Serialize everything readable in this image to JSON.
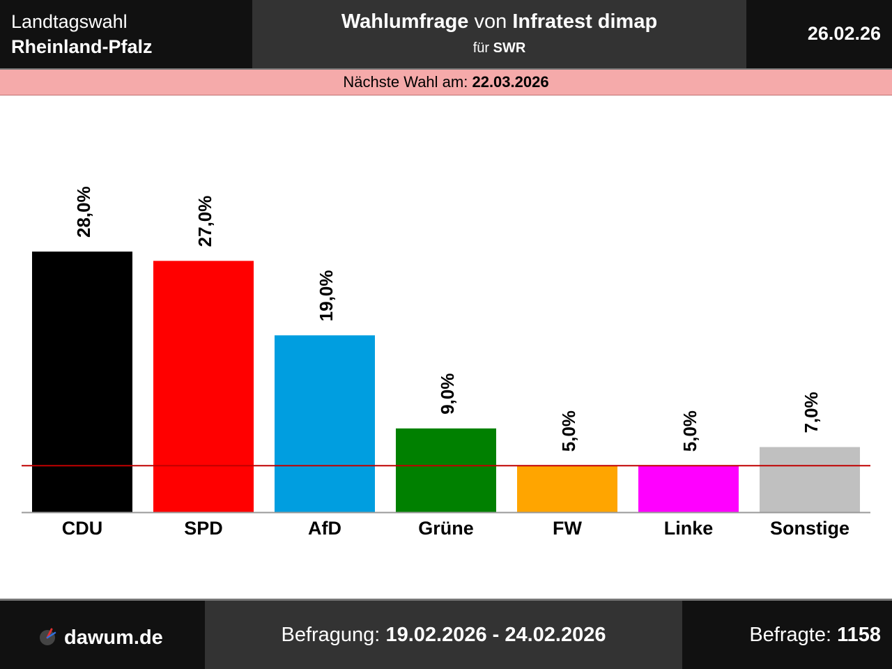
{
  "header": {
    "election_type": "Landtagswahl",
    "state": "Rheinland-Pfalz",
    "poll_word": "Wahlumfrage",
    "von": "von",
    "institute": "Infratest dimap",
    "fuer": "für",
    "client": "SWR",
    "date": "26.02.26"
  },
  "next_election": {
    "label": "Nächste Wahl am:",
    "date": "22.03.2026"
  },
  "chart_data": {
    "type": "bar",
    "categories": [
      "CDU",
      "SPD",
      "AfD",
      "Grüne",
      "FW",
      "Linke",
      "Sonstige"
    ],
    "values": [
      28.0,
      27.0,
      19.0,
      9.0,
      5.0,
      5.0,
      7.0
    ],
    "value_labels": [
      "28,0%",
      "27,0%",
      "19,0%",
      "9,0%",
      "5,0%",
      "5,0%",
      "7,0%"
    ],
    "colors": [
      "#000000",
      "#ff0000",
      "#009ee0",
      "#008000",
      "#ffa500",
      "#ff00ff",
      "#c0c0c0"
    ],
    "threshold": 5.0,
    "threshold_color": "#c00000",
    "ylim": [
      0,
      28
    ],
    "grid": false
  },
  "footer": {
    "site": "dawum.de",
    "survey_label": "Befragung:",
    "survey_period": "19.02.2026 - 24.02.2026",
    "respondents_label": "Befragte:",
    "respondents": "1158"
  }
}
